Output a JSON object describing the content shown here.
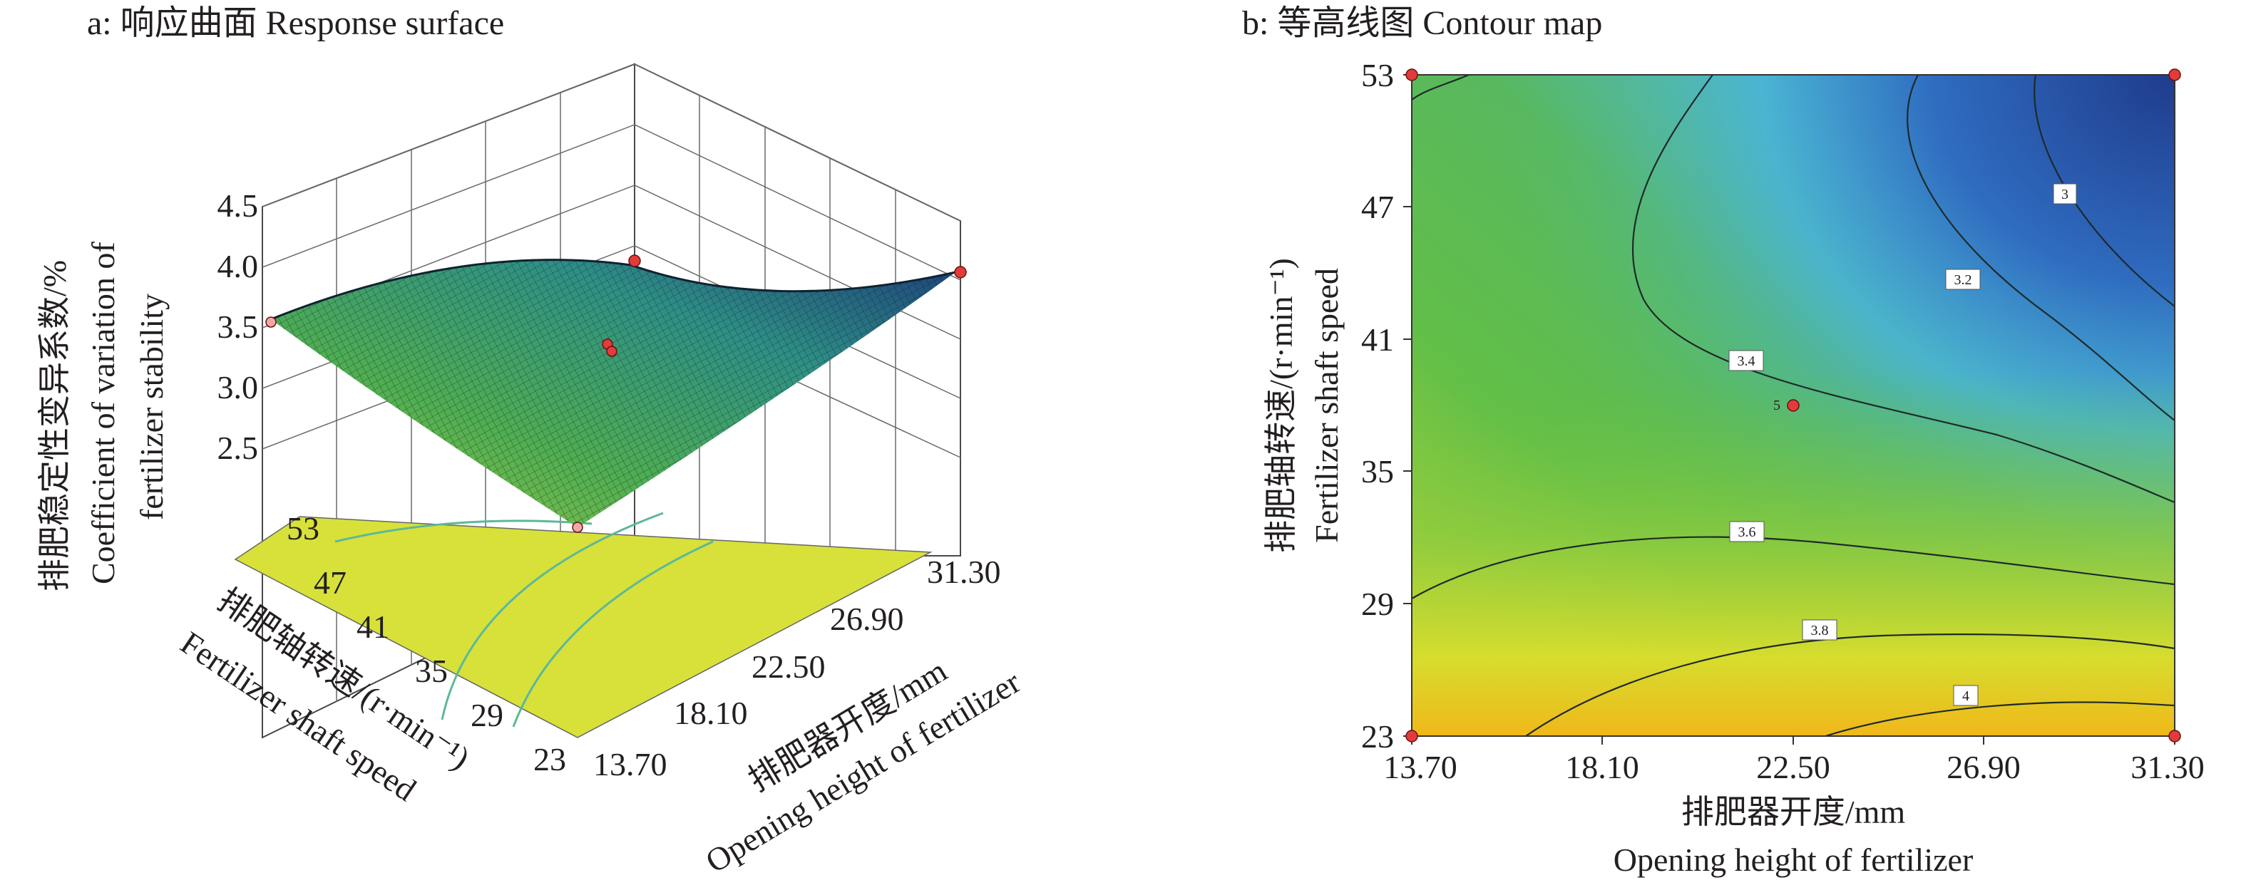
{
  "chart_data": [
    {
      "type": "surface3d",
      "title": "a: 响应曲面 Response surface",
      "zlabel_cn": "排肥稳定性变异系数/%",
      "zlabel_en_1": "Coefficient of variation of",
      "zlabel_en_2": "fertilizer stability",
      "ylabel_cn": "排肥轴转速/(r·min⁻¹)",
      "ylabel_en": "Fertilizer shaft speed",
      "xlabel_cn": "排肥器开度/mm",
      "xlabel_en": "Opening height of fertilizer",
      "x_ticks": [
        "13.70",
        "18.10",
        "22.50",
        "26.90",
        "31.30"
      ],
      "y_ticks": [
        "23",
        "29",
        "35",
        "41",
        "47",
        "53"
      ],
      "z_ticks": [
        "2.5",
        "3.0",
        "3.5",
        "4.0",
        "4.5"
      ],
      "xlim": [
        13.7,
        31.3
      ],
      "ylim": [
        23,
        53
      ],
      "zlim": [
        2.5,
        4.5
      ],
      "corner_z": {
        "x0y0": 4.1,
        "x1y0": 4.2,
        "x0y1": 3.5,
        "x1y1": 2.6
      },
      "surface_colors": [
        "#1f3f8e",
        "#2f7fb1",
        "#3aa37a",
        "#57b34a",
        "#a0cf3c",
        "#f0d21c"
      ],
      "floor_color": "#d7e13a"
    },
    {
      "type": "contour",
      "title": "b: 等高线图 Contour map",
      "ylabel_cn": "排肥轴转速/(r·min⁻¹)",
      "ylabel_en": "Fertilizer shaft speed",
      "xlabel_cn": "排肥器开度/mm",
      "xlabel_en": "Opening height of fertilizer",
      "x_ticks": [
        "13.70",
        "18.10",
        "22.50",
        "26.90",
        "31.30"
      ],
      "y_ticks": [
        "23",
        "29",
        "35",
        "41",
        "47",
        "53"
      ],
      "xlim": [
        13.7,
        31.3
      ],
      "ylim": [
        23,
        53
      ],
      "contour_levels": [
        "3",
        "3.2",
        "3.4",
        "3.6",
        "3.8",
        "4"
      ],
      "center_point_label": "5",
      "center_point": {
        "x": 22.5,
        "y": 38
      },
      "design_points": [
        {
          "x": 13.7,
          "y": 23
        },
        {
          "x": 31.3,
          "y": 23
        },
        {
          "x": 13.7,
          "y": 53
        },
        {
          "x": 31.3,
          "y": 53
        }
      ],
      "color_low": "#1f3d8f",
      "color_mid": "#5dbe48",
      "color_high": "#f0b41c"
    }
  ]
}
